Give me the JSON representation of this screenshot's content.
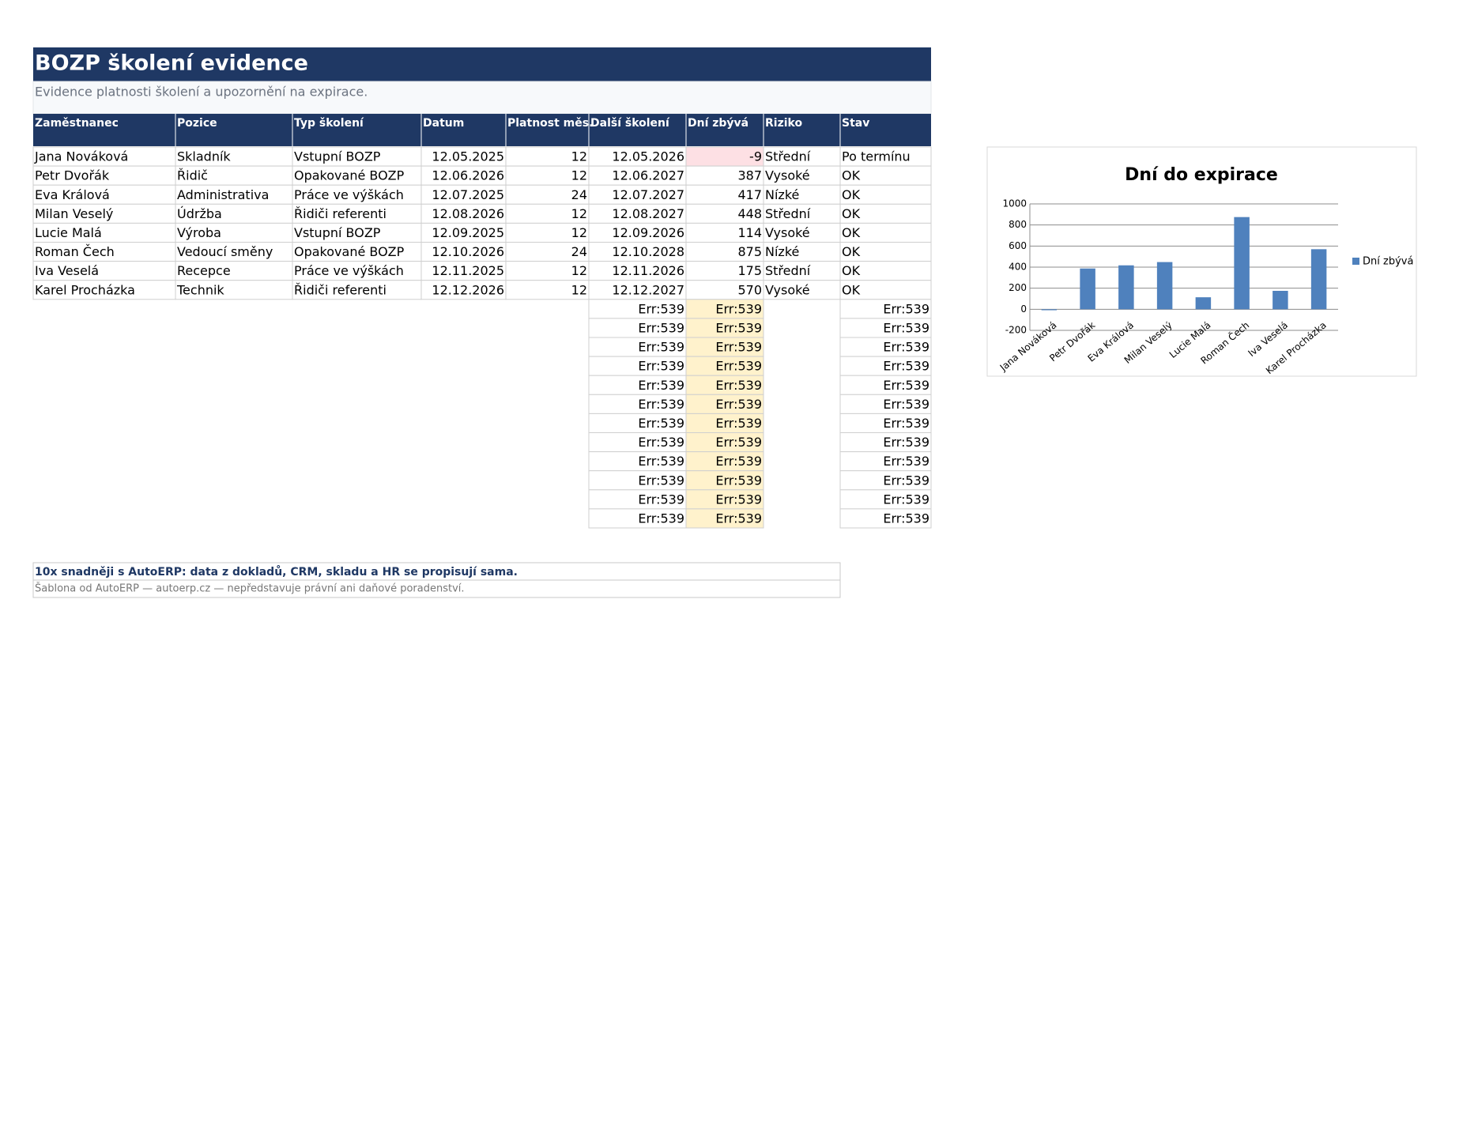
{
  "header": {
    "title": "BOZP školení evidence",
    "subtitle": "Evidence platnosti školení a upozornění na expirace."
  },
  "table": {
    "columns": [
      "Zaměstnanec",
      "Pozice",
      "Typ školení",
      "Datum",
      "Platnost měs.",
      "Další školení",
      "Dní zbývá",
      "Riziko",
      "Stav"
    ],
    "rows": [
      [
        "Jana Nováková",
        "Skladník",
        "Vstupní BOZP",
        "12.05.2025",
        12,
        "12.05.2026",
        -9,
        "Střední",
        "Po termínu"
      ],
      [
        "Petr Dvořák",
        "Řidič",
        "Opakované BOZP",
        "12.06.2026",
        12,
        "12.06.2027",
        387,
        "Vysoké",
        "OK"
      ],
      [
        "Eva Králová",
        "Administrativa",
        "Práce ve výškách",
        "12.07.2025",
        24,
        "12.07.2027",
        417,
        "Nízké",
        "OK"
      ],
      [
        "Milan Veselý",
        "Údržba",
        "Řidiči referenti",
        "12.08.2026",
        12,
        "12.08.2027",
        448,
        "Střední",
        "OK"
      ],
      [
        "Lucie Malá",
        "Výroba",
        "Vstupní BOZP",
        "12.09.2025",
        12,
        "12.09.2026",
        114,
        "Vysoké",
        "OK"
      ],
      [
        "Roman Čech",
        "Vedoucí směny",
        "Opakované BOZP",
        "12.10.2026",
        24,
        "12.10.2028",
        875,
        "Nízké",
        "OK"
      ],
      [
        "Iva Veselá",
        "Recepce",
        "Práce ve výškách",
        "12.11.2025",
        12,
        "12.11.2026",
        175,
        "Střední",
        "OK"
      ],
      [
        "Karel Procházka",
        "Technik",
        "Řidiči referenti",
        "12.12.2026",
        12,
        "12.12.2027",
        570,
        "Vysoké",
        "OK"
      ]
    ],
    "error_rows": [
      [
        "Err:539",
        "Err:539",
        "Err:539"
      ],
      [
        "Err:539",
        "Err:539",
        "Err:539"
      ],
      [
        "Err:539",
        "Err:539",
        "Err:539"
      ],
      [
        "Err:539",
        "Err:539",
        "Err:539"
      ],
      [
        "Err:539",
        "Err:539",
        "Err:539"
      ],
      [
        "Err:539",
        "Err:539",
        "Err:539"
      ],
      [
        "Err:539",
        "Err:539",
        "Err:539"
      ],
      [
        "Err:539",
        "Err:539",
        "Err:539"
      ],
      [
        "Err:539",
        "Err:539",
        "Err:539"
      ],
      [
        "Err:539",
        "Err:539",
        "Err:539"
      ],
      [
        "Err:539",
        "Err:539",
        "Err:539"
      ],
      [
        "Err:539",
        "Err:539",
        "Err:539"
      ]
    ]
  },
  "footer": {
    "promo": "10x snadněji s AutoERP: data z dokladů, CRM, skladu a HR se propisují sama.",
    "note": "Šablona od AutoERP — autoerp.cz — nepředstavuje právní ani daňové poradenství."
  },
  "chart_data": {
    "type": "bar",
    "title": "Dní do expirace",
    "categories": [
      "Jana Nováková",
      "Petr Dvořák",
      "Eva Králová",
      "Milan Veselý",
      "Lucie Malá",
      "Roman Čech",
      "Iva Veselá",
      "Karel Procházka"
    ],
    "series": [
      {
        "name": "Dní zbývá",
        "color": "#4f81bd",
        "values": [
          -9,
          387,
          417,
          448,
          114,
          875,
          175,
          570
        ]
      }
    ],
    "ylim": [
      -200,
      1000
    ],
    "yticks": [
      -200,
      0,
      200,
      400,
      600,
      800,
      1000
    ],
    "grid": true,
    "legend": "right"
  }
}
